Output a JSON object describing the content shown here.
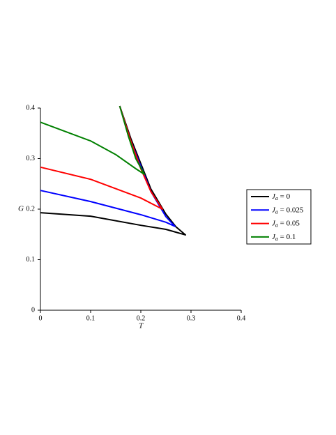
{
  "chart_data": {
    "type": "line",
    "xlabel": "T",
    "ylabel": "G",
    "xlim": [
      0,
      0.4
    ],
    "ylim": [
      0,
      0.4
    ],
    "xticks": [
      0,
      0.1,
      0.2,
      0.3,
      0.4
    ],
    "yticks": [
      0,
      0.1,
      0.2,
      0.3,
      0.4
    ],
    "series": [
      {
        "name": "Ja = 0",
        "color": "#000000",
        "x": [
          0,
          0.1,
          0.2,
          0.25,
          0.289,
          0.27,
          0.25,
          0.22,
          0.2,
          0.18,
          0.158
        ],
        "values": [
          0.193,
          0.186,
          0.168,
          0.16,
          0.149,
          0.165,
          0.19,
          0.24,
          0.29,
          0.34,
          0.404
        ]
      },
      {
        "name": "Ja = 0.025",
        "color": "#0000ff",
        "x": [
          0,
          0.1,
          0.2,
          0.25,
          0.268,
          0.25,
          0.22,
          0.2,
          0.18,
          0.158
        ],
        "values": [
          0.237,
          0.215,
          0.189,
          0.174,
          0.166,
          0.185,
          0.235,
          0.285,
          0.335,
          0.404
        ]
      },
      {
        "name": "Ja = 0.05",
        "color": "#ff0000",
        "x": [
          0,
          0.1,
          0.2,
          0.243,
          0.22,
          0.2,
          0.18,
          0.158
        ],
        "values": [
          0.283,
          0.259,
          0.222,
          0.2,
          0.235,
          0.28,
          0.335,
          0.404
        ]
      },
      {
        "name": "Ja = 0.1",
        "color": "#008000",
        "x": [
          0,
          0.1,
          0.15,
          0.19,
          0.207,
          0.19,
          0.175,
          0.158
        ],
        "values": [
          0.372,
          0.335,
          0.308,
          0.28,
          0.269,
          0.3,
          0.345,
          0.404
        ]
      }
    ]
  }
}
